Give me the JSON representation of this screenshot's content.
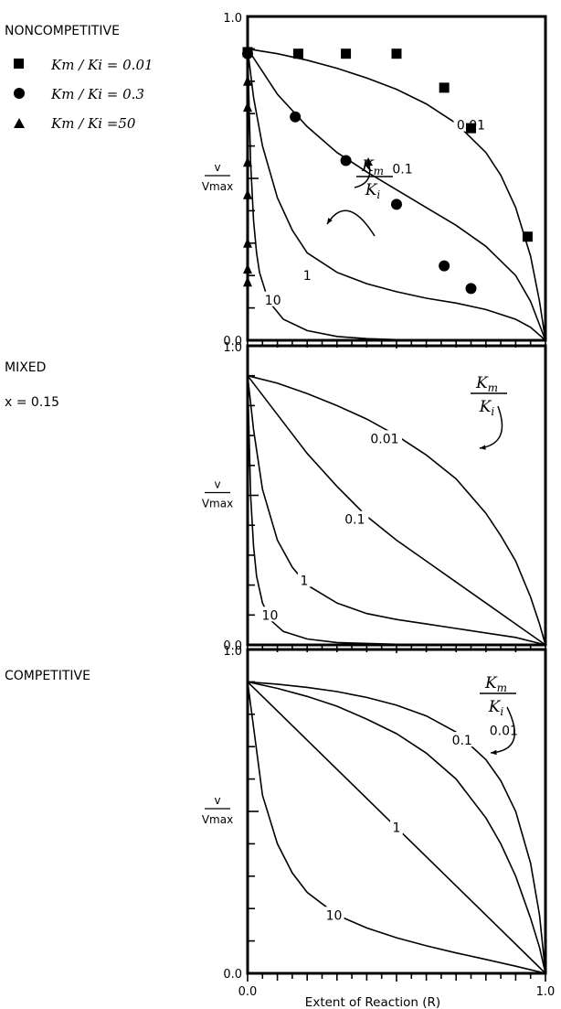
{
  "chart_data": [
    {
      "type": "line",
      "title": "NONCOMPETITIVE",
      "xlabel": "",
      "ylabel": "v / Vmax",
      "xlim": [
        0,
        1
      ],
      "ylim": [
        0,
        1
      ],
      "ytick_labels": [
        "1.0",
        "0.0"
      ],
      "key_label": "Km/Ki",
      "legend": [
        {
          "marker": "square",
          "text": "Km / Ki = 0.01"
        },
        {
          "marker": "circle",
          "text": "Km / Ki = 0.3"
        },
        {
          "marker": "triangle",
          "text": "Km / Ki =50"
        }
      ],
      "series": [
        {
          "name": "0.01",
          "label_at": [
            0.75,
            0.665
          ],
          "x": [
            0,
            0.1,
            0.2,
            0.3,
            0.4,
            0.5,
            0.6,
            0.7,
            0.8,
            0.85,
            0.9,
            0.95,
            0.98,
            1.0
          ],
          "y": [
            0.9,
            0.885,
            0.865,
            0.84,
            0.81,
            0.775,
            0.73,
            0.67,
            0.58,
            0.51,
            0.41,
            0.26,
            0.12,
            0.0
          ]
        },
        {
          "name": "0.1",
          "label_at": [
            0.52,
            0.53
          ],
          "x": [
            0,
            0.05,
            0.1,
            0.2,
            0.3,
            0.4,
            0.5,
            0.6,
            0.7,
            0.8,
            0.9,
            0.95,
            1.0
          ],
          "y": [
            0.9,
            0.83,
            0.76,
            0.66,
            0.58,
            0.52,
            0.465,
            0.41,
            0.355,
            0.29,
            0.2,
            0.12,
            0.0
          ]
        },
        {
          "name": "1",
          "label_at": [
            0.2,
            0.2
          ],
          "x": [
            0,
            0.02,
            0.05,
            0.1,
            0.15,
            0.2,
            0.3,
            0.4,
            0.5,
            0.6,
            0.7,
            0.8,
            0.9,
            0.95,
            1.0
          ],
          "y": [
            0.9,
            0.75,
            0.6,
            0.44,
            0.34,
            0.27,
            0.21,
            0.175,
            0.15,
            0.13,
            0.115,
            0.095,
            0.065,
            0.04,
            0.0
          ]
        },
        {
          "name": "10",
          "label_at": [
            0.085,
            0.125
          ],
          "x": [
            0,
            0.01,
            0.02,
            0.03,
            0.04,
            0.06,
            0.08,
            0.12,
            0.2,
            0.3,
            0.4,
            0.5,
            1.0
          ],
          "y": [
            0.9,
            0.55,
            0.37,
            0.27,
            0.21,
            0.15,
            0.11,
            0.065,
            0.03,
            0.012,
            0.005,
            0.002,
            0.0
          ]
        }
      ],
      "points": [
        {
          "marker": "square",
          "x": [
            0.0,
            0.17,
            0.33,
            0.5,
            0.66,
            0.75,
            0.94
          ],
          "y": [
            0.89,
            0.885,
            0.885,
            0.885,
            0.78,
            0.655,
            0.32
          ]
        },
        {
          "marker": "circle",
          "x": [
            0.0,
            0.16,
            0.33,
            0.5,
            0.66,
            0.75
          ],
          "y": [
            0.885,
            0.69,
            0.555,
            0.42,
            0.23,
            0.16
          ]
        },
        {
          "marker": "triangle",
          "x": [
            0.0,
            0.0,
            0.0,
            0.0,
            0.0,
            0.0,
            0.0
          ],
          "y": [
            0.8,
            0.72,
            0.55,
            0.45,
            0.3,
            0.18,
            0.22
          ]
        }
      ]
    },
    {
      "type": "line",
      "title": "MIXED",
      "subtitle": "x = 0.15",
      "xlabel": "",
      "ylabel": "v / Vmax",
      "xlim": [
        0,
        1
      ],
      "ylim": [
        0,
        1
      ],
      "ytick_labels": [
        "1.0",
        "0.0"
      ],
      "key_label": "Km/Ki",
      "series": [
        {
          "name": "0.01",
          "label_at": [
            0.46,
            0.69
          ],
          "x": [
            0,
            0.1,
            0.2,
            0.3,
            0.4,
            0.5,
            0.6,
            0.7,
            0.8,
            0.85,
            0.9,
            0.95,
            0.98,
            1.0
          ],
          "y": [
            0.9,
            0.875,
            0.84,
            0.8,
            0.755,
            0.7,
            0.635,
            0.555,
            0.44,
            0.365,
            0.28,
            0.16,
            0.07,
            0.0
          ]
        },
        {
          "name": "0.1",
          "label_at": [
            0.36,
            0.42
          ],
          "x": [
            0,
            0.1,
            0.2,
            0.3,
            0.4,
            0.5,
            0.6,
            0.7,
            0.8,
            0.9,
            1.0
          ],
          "y": [
            0.9,
            0.77,
            0.64,
            0.53,
            0.43,
            0.35,
            0.28,
            0.21,
            0.14,
            0.07,
            0.0
          ]
        },
        {
          "name": "1",
          "label_at": [
            0.19,
            0.215
          ],
          "x": [
            0,
            0.02,
            0.05,
            0.1,
            0.15,
            0.2,
            0.3,
            0.4,
            0.5,
            0.6,
            0.7,
            0.8,
            0.9,
            1.0
          ],
          "y": [
            0.9,
            0.72,
            0.52,
            0.35,
            0.26,
            0.2,
            0.14,
            0.105,
            0.085,
            0.07,
            0.055,
            0.04,
            0.025,
            0.0
          ]
        },
        {
          "name": "10",
          "label_at": [
            0.075,
            0.1
          ],
          "x": [
            0,
            0.01,
            0.02,
            0.03,
            0.05,
            0.08,
            0.12,
            0.2,
            0.3,
            0.5,
            1.0
          ],
          "y": [
            0.9,
            0.5,
            0.33,
            0.23,
            0.14,
            0.08,
            0.045,
            0.02,
            0.008,
            0.002,
            0.0
          ]
        }
      ]
    },
    {
      "type": "line",
      "title": "COMPETITIVE",
      "xlabel": "Extent of Reaction (R)",
      "ylabel": "v / Vmax",
      "xlim": [
        0,
        1
      ],
      "ylim": [
        0,
        1
      ],
      "xtick_labels": [
        "0.0",
        "1.0"
      ],
      "ytick_labels": [
        "1.0",
        "0.0"
      ],
      "key_label": "Km/Ki",
      "series": [
        {
          "name": "0.01",
          "label_at": [
            0.86,
            0.75
          ],
          "x": [
            0,
            0.1,
            0.2,
            0.3,
            0.4,
            0.5,
            0.6,
            0.7,
            0.8,
            0.85,
            0.9,
            0.95,
            0.98,
            1.0
          ],
          "y": [
            0.9,
            0.893,
            0.883,
            0.87,
            0.852,
            0.828,
            0.795,
            0.745,
            0.66,
            0.595,
            0.5,
            0.34,
            0.18,
            0.0
          ]
        },
        {
          "name": "0.1",
          "label_at": [
            0.72,
            0.72
          ],
          "x": [
            0,
            0.1,
            0.2,
            0.3,
            0.4,
            0.5,
            0.6,
            0.7,
            0.8,
            0.85,
            0.9,
            0.95,
            0.98,
            1.0
          ],
          "y": [
            0.9,
            0.88,
            0.855,
            0.825,
            0.785,
            0.74,
            0.68,
            0.6,
            0.48,
            0.4,
            0.3,
            0.17,
            0.08,
            0.0
          ]
        },
        {
          "name": "1",
          "label_at": [
            0.5,
            0.45
          ],
          "x": [
            0,
            1.0
          ],
          "y": [
            0.9,
            0.0
          ]
        },
        {
          "name": "10",
          "label_at": [
            0.29,
            0.18
          ],
          "x": [
            0,
            0.05,
            0.1,
            0.15,
            0.2,
            0.3,
            0.4,
            0.5,
            0.6,
            0.7,
            0.8,
            0.9,
            1.0
          ],
          "y": [
            0.9,
            0.55,
            0.4,
            0.31,
            0.25,
            0.18,
            0.14,
            0.11,
            0.085,
            0.063,
            0.043,
            0.022,
            0.0
          ]
        }
      ]
    }
  ]
}
